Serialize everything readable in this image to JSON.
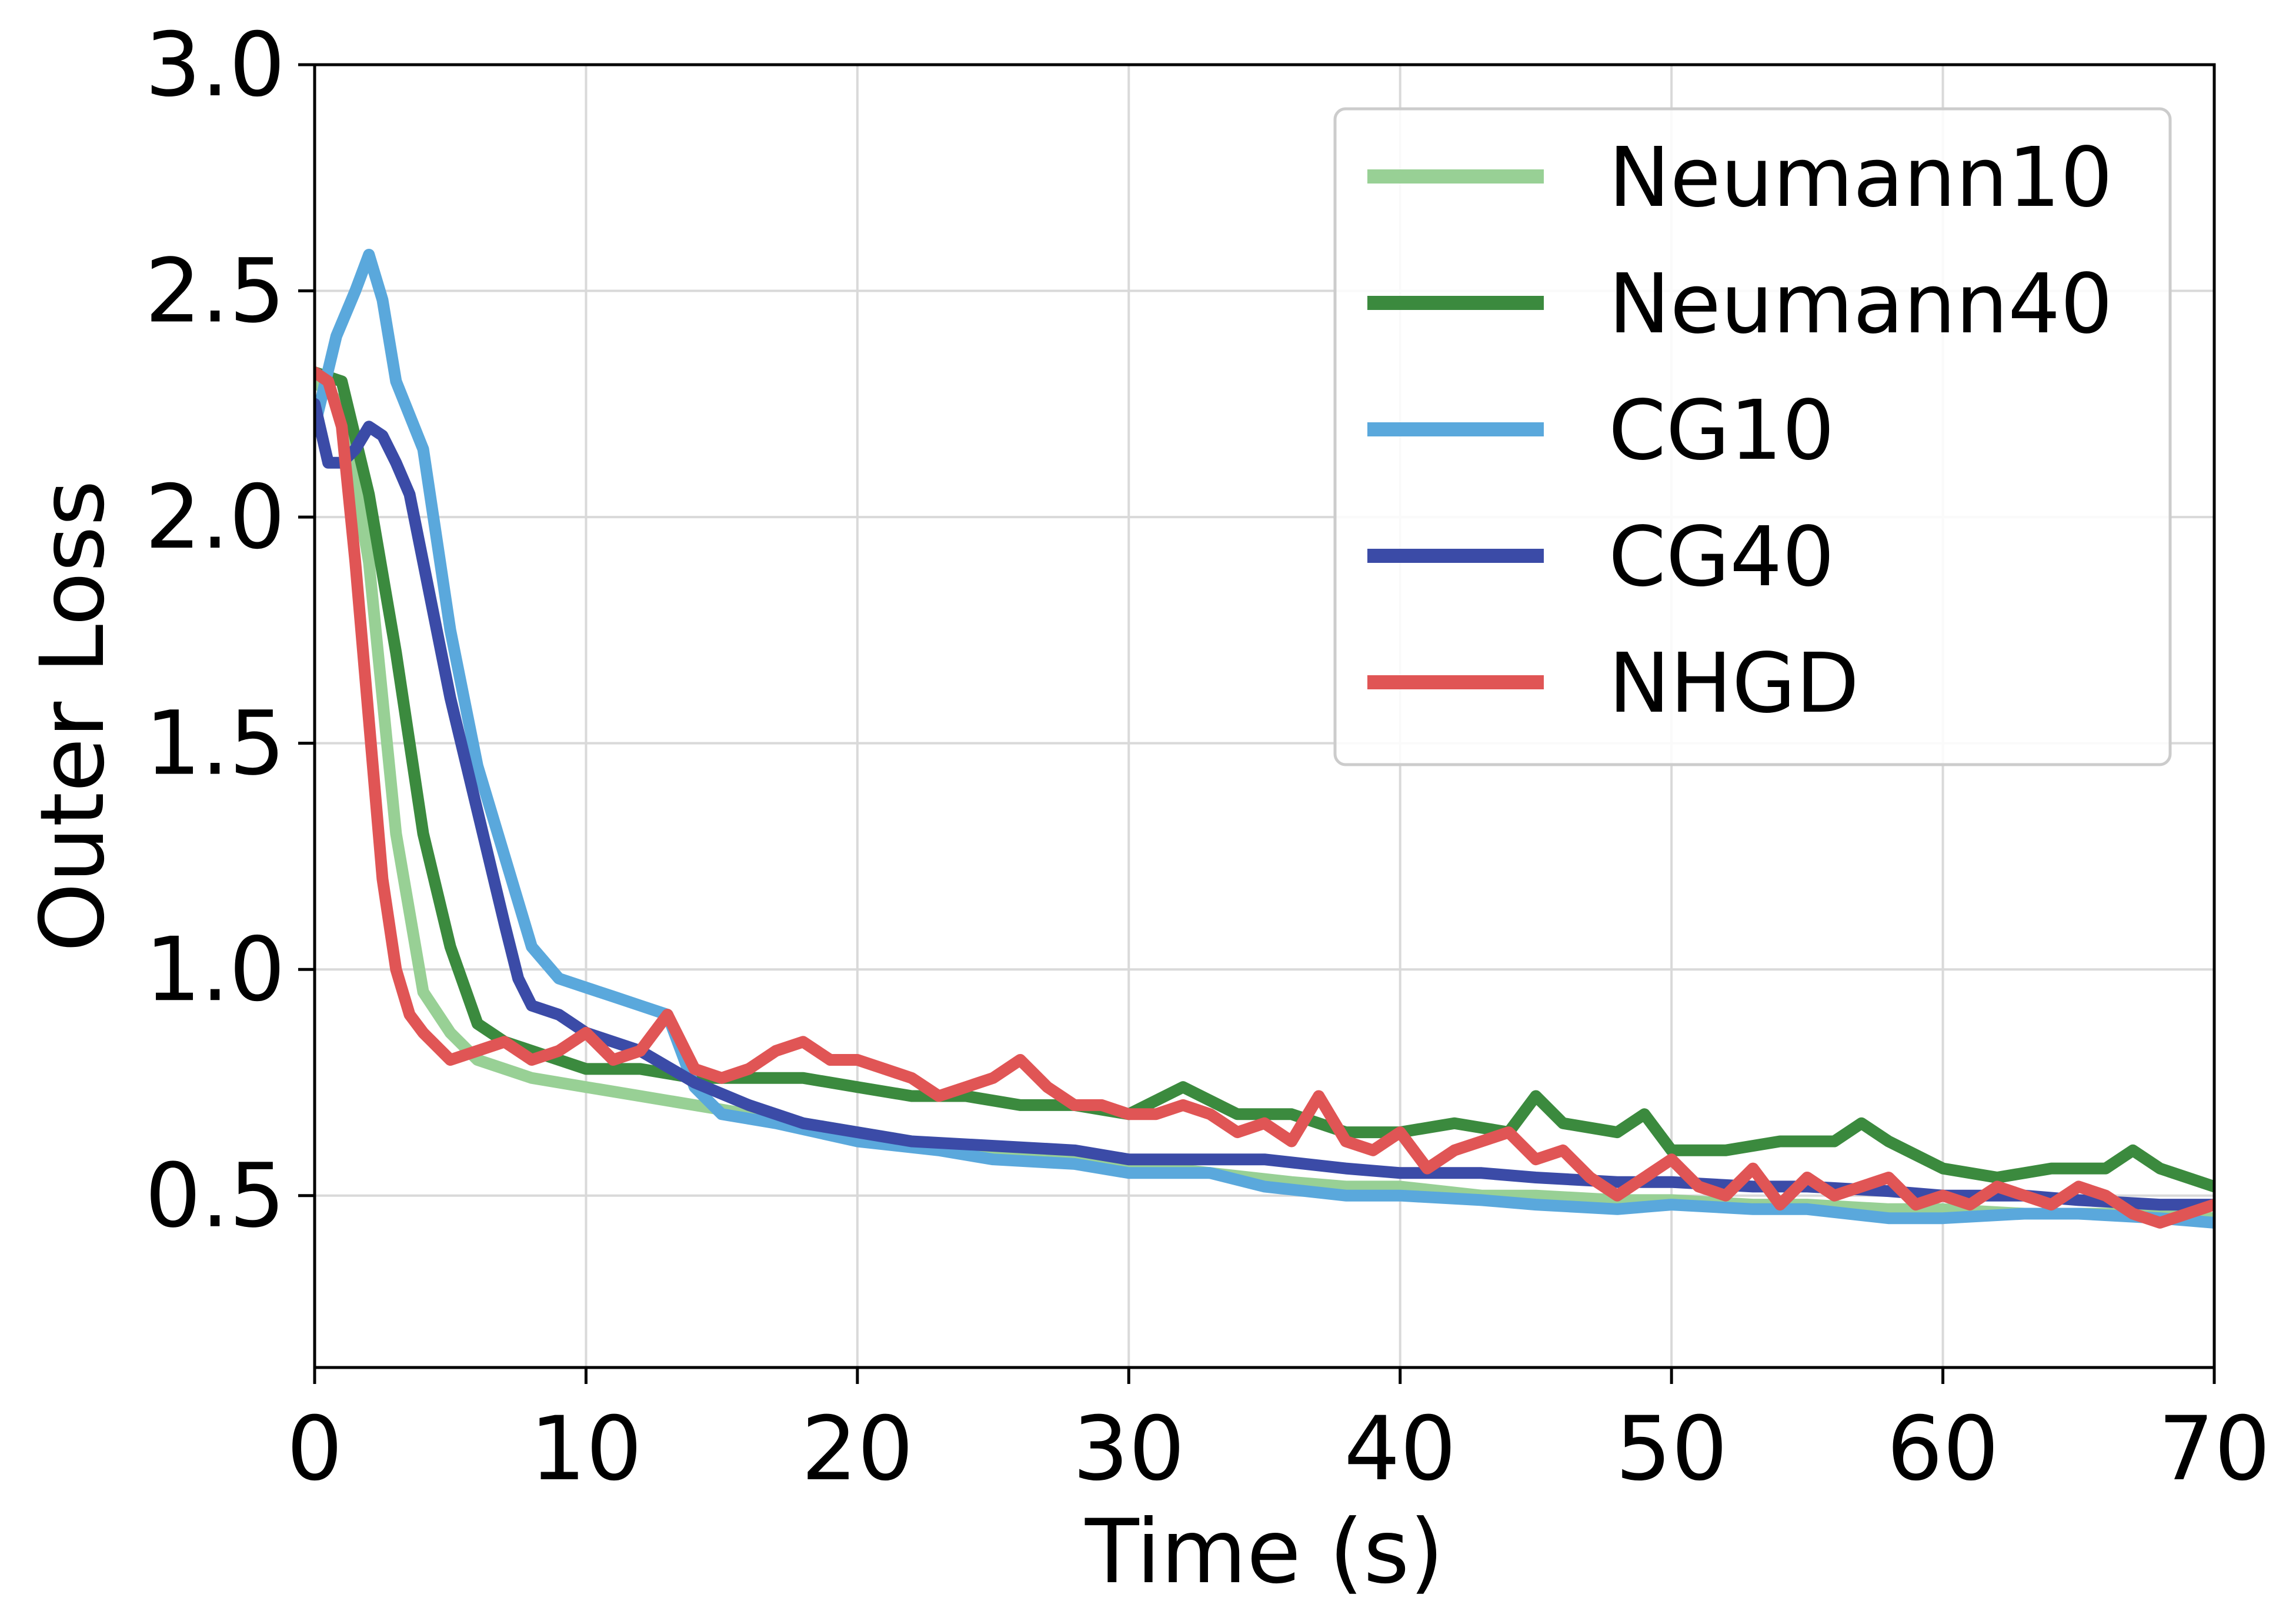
{
  "chart_data": {
    "type": "line",
    "title": "",
    "xlabel": "Time (s)",
    "ylabel": "Outer Loss",
    "xlim": [
      0,
      70
    ],
    "ylim": [
      0.12,
      3.0
    ],
    "xticks": [
      0,
      10,
      20,
      30,
      40,
      50,
      60,
      70
    ],
    "yticks": [
      0.5,
      1.0,
      1.5,
      2.0,
      2.5,
      3.0
    ],
    "xtick_labels": [
      "0",
      "10",
      "20",
      "30",
      "40",
      "50",
      "60",
      "70"
    ],
    "ytick_labels": [
      "0.5",
      "1.0",
      "1.5",
      "2.0",
      "2.5",
      "3.0"
    ],
    "grid": true,
    "legend_position": "top-right",
    "series": [
      {
        "name": "Neumann10",
        "color": "#98d095",
        "x": [
          0,
          1,
          2,
          3,
          4,
          5,
          6,
          7,
          8,
          9,
          10,
          12,
          14,
          16,
          18,
          20,
          22,
          25,
          28,
          30,
          33,
          36,
          38,
          40,
          43,
          45,
          48,
          50,
          53,
          55,
          58,
          60,
          63,
          65,
          68,
          70
        ],
        "y": [
          2.3,
          2.25,
          1.9,
          1.3,
          0.95,
          0.86,
          0.8,
          0.78,
          0.76,
          0.75,
          0.74,
          0.72,
          0.7,
          0.68,
          0.66,
          0.64,
          0.62,
          0.6,
          0.58,
          0.57,
          0.55,
          0.53,
          0.52,
          0.52,
          0.5,
          0.5,
          0.49,
          0.49,
          0.48,
          0.48,
          0.47,
          0.47,
          0.46,
          0.46,
          0.46,
          0.45
        ]
      },
      {
        "name": "Neumann40",
        "color": "#3b8a3e",
        "x": [
          0,
          1,
          2,
          3,
          4,
          5,
          6,
          7,
          8,
          9,
          10,
          12,
          14,
          16,
          18,
          20,
          22,
          24,
          26,
          28,
          30,
          32,
          34,
          36,
          38,
          40,
          42,
          44,
          45,
          46,
          48,
          49,
          50,
          52,
          54,
          56,
          57,
          58,
          60,
          62,
          64,
          66,
          67,
          68,
          70
        ],
        "y": [
          2.32,
          2.3,
          2.05,
          1.7,
          1.3,
          1.05,
          0.88,
          0.84,
          0.82,
          0.8,
          0.78,
          0.78,
          0.76,
          0.76,
          0.76,
          0.74,
          0.72,
          0.72,
          0.7,
          0.7,
          0.68,
          0.74,
          0.68,
          0.68,
          0.64,
          0.64,
          0.66,
          0.64,
          0.72,
          0.66,
          0.64,
          0.68,
          0.6,
          0.6,
          0.62,
          0.62,
          0.66,
          0.62,
          0.56,
          0.54,
          0.56,
          0.56,
          0.6,
          0.56,
          0.52
        ]
      },
      {
        "name": "CG10",
        "color": "#5aa8dc",
        "x": [
          0,
          0.8,
          1.5,
          2,
          2.5,
          3,
          4,
          5,
          6,
          7,
          8,
          9,
          10,
          11,
          12,
          13,
          14,
          15,
          17,
          20,
          23,
          25,
          28,
          30,
          33,
          35,
          38,
          40,
          43,
          45,
          48,
          50,
          53,
          55,
          58,
          60,
          63,
          65,
          68,
          70
        ],
        "y": [
          2.2,
          2.4,
          2.5,
          2.58,
          2.48,
          2.3,
          2.15,
          1.75,
          1.45,
          1.25,
          1.05,
          0.98,
          0.96,
          0.94,
          0.92,
          0.9,
          0.74,
          0.68,
          0.66,
          0.62,
          0.6,
          0.58,
          0.57,
          0.55,
          0.55,
          0.52,
          0.5,
          0.5,
          0.49,
          0.48,
          0.47,
          0.48,
          0.47,
          0.47,
          0.45,
          0.45,
          0.46,
          0.46,
          0.45,
          0.44
        ]
      },
      {
        "name": "CG40",
        "color": "#3b4ba7",
        "x": [
          0,
          0.5,
          1,
          1.5,
          2,
          2.5,
          3,
          3.5,
          4,
          5,
          6,
          7,
          7.5,
          8,
          9,
          10,
          12,
          14,
          16,
          18,
          20,
          22,
          25,
          28,
          30,
          33,
          35,
          38,
          40,
          43,
          45,
          48,
          50,
          53,
          55,
          58,
          60,
          63,
          65,
          68,
          70
        ],
        "y": [
          2.25,
          2.12,
          2.12,
          2.15,
          2.2,
          2.18,
          2.12,
          2.05,
          1.9,
          1.6,
          1.35,
          1.1,
          0.98,
          0.92,
          0.9,
          0.86,
          0.82,
          0.75,
          0.7,
          0.66,
          0.64,
          0.62,
          0.61,
          0.6,
          0.58,
          0.58,
          0.58,
          0.56,
          0.55,
          0.55,
          0.54,
          0.53,
          0.53,
          0.52,
          0.52,
          0.51,
          0.5,
          0.5,
          0.49,
          0.48,
          0.48
        ]
      },
      {
        "name": "NHGD",
        "color": "#e05555",
        "x": [
          0,
          0.5,
          1,
          1.5,
          2,
          2.5,
          3,
          3.5,
          4,
          5,
          6,
          7,
          8,
          9,
          10,
          11,
          12,
          13,
          14,
          15,
          16,
          17,
          18,
          19,
          20,
          21,
          22,
          23,
          24,
          25,
          26,
          27,
          28,
          29,
          30,
          31,
          32,
          33,
          34,
          35,
          36,
          37,
          38,
          39,
          40,
          41,
          42,
          43,
          44,
          45,
          46,
          47,
          48,
          49,
          50,
          51,
          52,
          53,
          54,
          55,
          56,
          57,
          58,
          59,
          60,
          61,
          62,
          63,
          64,
          65,
          66,
          67,
          68,
          69,
          70
        ],
        "y": [
          2.32,
          2.3,
          2.2,
          1.9,
          1.55,
          1.2,
          1.0,
          0.9,
          0.86,
          0.8,
          0.82,
          0.84,
          0.8,
          0.82,
          0.86,
          0.8,
          0.82,
          0.9,
          0.78,
          0.76,
          0.78,
          0.82,
          0.84,
          0.8,
          0.8,
          0.78,
          0.76,
          0.72,
          0.74,
          0.76,
          0.8,
          0.74,
          0.7,
          0.7,
          0.68,
          0.68,
          0.7,
          0.68,
          0.64,
          0.66,
          0.62,
          0.72,
          0.62,
          0.6,
          0.64,
          0.56,
          0.6,
          0.62,
          0.64,
          0.58,
          0.6,
          0.54,
          0.5,
          0.54,
          0.58,
          0.52,
          0.5,
          0.56,
          0.48,
          0.54,
          0.5,
          0.52,
          0.54,
          0.48,
          0.5,
          0.48,
          0.52,
          0.5,
          0.48,
          0.52,
          0.5,
          0.46,
          0.44,
          0.46,
          0.48
        ]
      }
    ]
  }
}
